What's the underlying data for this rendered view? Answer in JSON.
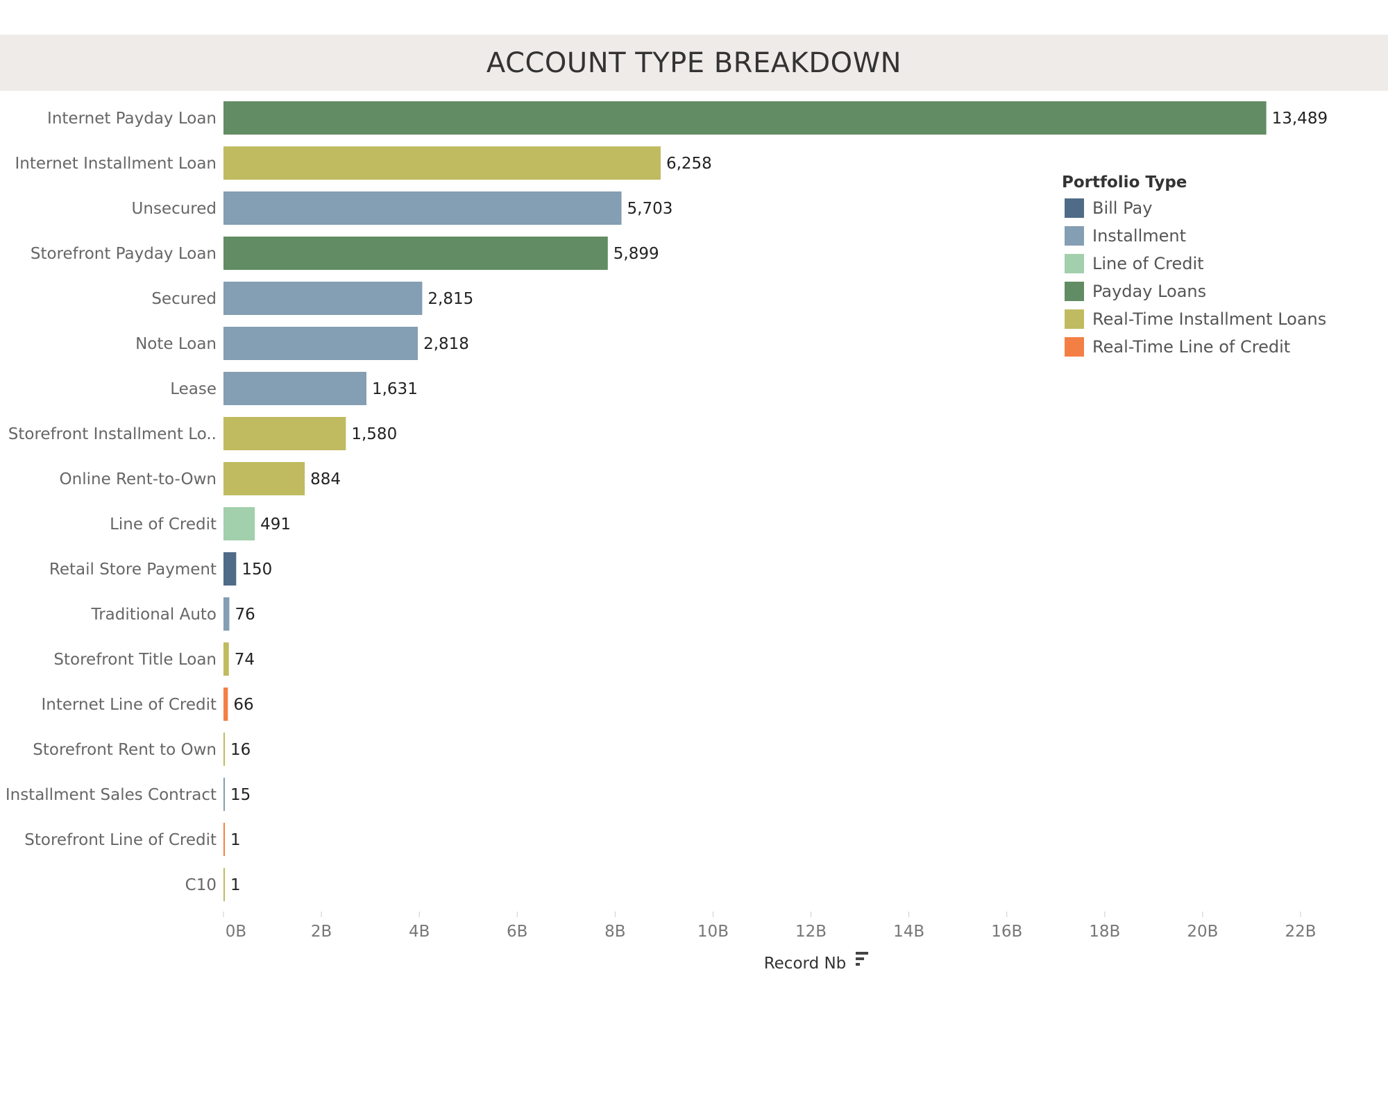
{
  "chart_data": {
    "type": "bar",
    "orientation": "horizontal",
    "title": "ACCOUNT TYPE BREAKDOWN",
    "xlabel": "Record Nb",
    "categories": [
      "Internet Payday Loan",
      "Internet Installment Loan",
      "Unsecured",
      "Storefront Payday Loan",
      "Secured",
      "Note Loan",
      "Lease",
      "Storefront Installment Lo..",
      "Online Rent-to-Own",
      "Line of Credit",
      "Retail Store Payment",
      "Traditional Auto",
      "Storefront Title Loan",
      "Internet Line of Credit",
      "Storefront Rent to Own",
      "Installment Sales Contract",
      "Storefront Line of Credit",
      "C10"
    ],
    "value_labels": [
      "13,489",
      "6,258",
      "5,703",
      "5,899",
      "2,815",
      "2,818",
      "1,631",
      "1,580",
      "884",
      "491",
      "150",
      "76",
      "74",
      "66",
      "16",
      "15",
      "1",
      "1"
    ],
    "values": [
      21.3,
      8.93,
      8.13,
      7.85,
      4.06,
      3.97,
      2.92,
      2.5,
      1.66,
      0.64,
      0.26,
      0.12,
      0.11,
      0.09,
      0.02,
      0.02,
      0.01,
      0.01
    ],
    "value_unit": "B",
    "portfolio": [
      "Payday Loans",
      "Real-Time Installment Loans",
      "Installment",
      "Payday Loans",
      "Installment",
      "Installment",
      "Installment",
      "Real-Time Installment Loans",
      "Real-Time Installment Loans",
      "Line of Credit",
      "Bill Pay",
      "Installment",
      "Real-Time Installment Loans",
      "Real-Time Line of Credit",
      "Real-Time Installment Loans",
      "Installment",
      "Real-Time Line of Credit",
      "Real-Time Installment Loans"
    ],
    "xlim": [
      0,
      22
    ],
    "x_ticks": [
      "0B",
      "2B",
      "4B",
      "6B",
      "8B",
      "10B",
      "12B",
      "14B",
      "16B",
      "18B",
      "20B",
      "22B"
    ],
    "grid": false,
    "legend": {
      "title": "Portfolio Type",
      "placement": "top-right",
      "entries": [
        {
          "name": "Bill Pay",
          "color": "#4f6b87"
        },
        {
          "name": "Installment",
          "color": "#849eb3"
        },
        {
          "name": "Line of Credit",
          "color": "#a2cfac"
        },
        {
          "name": "Payday Loans",
          "color": "#628c63"
        },
        {
          "name": "Real-Time Installment Loans",
          "color": "#c0bb60"
        },
        {
          "name": "Real-Time Line of Credit",
          "color": "#f47f45"
        }
      ]
    }
  }
}
